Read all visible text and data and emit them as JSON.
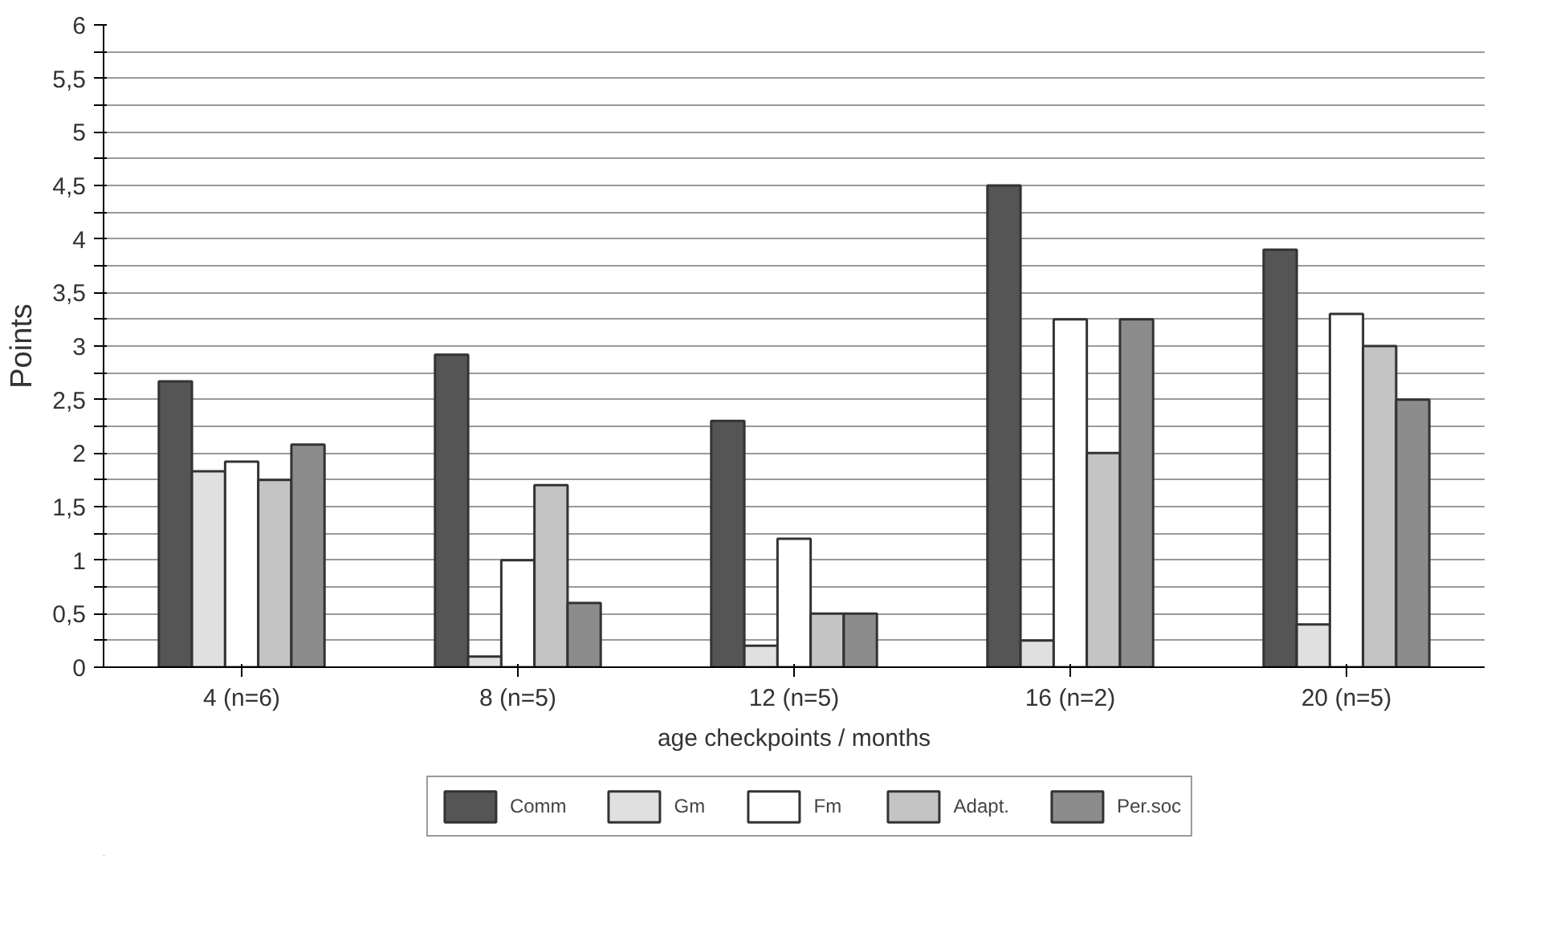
{
  "chart_data": {
    "type": "bar",
    "xlabel": "age checkpoints / months",
    "ylabel": "Points",
    "categories": [
      "4 (n=6)",
      "8 (n=5)",
      "12 (n=5)",
      "16 (n=2)",
      "20 (n=5)"
    ],
    "series": [
      {
        "name": "Comm",
        "color": "#555555",
        "values": [
          2.67,
          2.92,
          2.3,
          4.5,
          3.9
        ]
      },
      {
        "name": "Gm",
        "color": "#e0e0e0",
        "values": [
          1.83,
          0.1,
          0.2,
          0.25,
          0.4
        ]
      },
      {
        "name": "Fm",
        "color": "#ffffff",
        "values": [
          1.92,
          1.0,
          1.2,
          3.25,
          3.3
        ]
      },
      {
        "name": "Adapt.",
        "color": "#c4c4c4",
        "values": [
          1.75,
          1.7,
          0.5,
          2.0,
          3.0
        ]
      },
      {
        "name": "Per.soc",
        "color": "#8c8c8c",
        "values": [
          2.08,
          0.6,
          0.5,
          3.25,
          2.5
        ]
      }
    ],
    "ylim": [
      0,
      6
    ],
    "yticks": [
      0,
      {
        "value": 0.25,
        "label": null
      },
      {
        "value": 0.5,
        "label": "0,5"
      },
      {
        "value": 0.75,
        "label": null
      },
      1,
      {
        "value": 1.25,
        "label": null
      },
      {
        "value": 1.5,
        "label": "1,5"
      },
      {
        "value": 1.75,
        "label": null
      },
      2,
      {
        "value": 2.25,
        "label": null
      },
      {
        "value": 2.5,
        "label": "2,5"
      },
      {
        "value": 2.75,
        "label": null
      },
      3,
      {
        "value": 3.25,
        "label": null
      },
      {
        "value": 3.5,
        "label": "3,5"
      },
      {
        "value": 3.75,
        "label": null
      },
      4,
      {
        "value": 4.25,
        "label": null
      },
      {
        "value": 4.5,
        "label": "4,5"
      },
      {
        "value": 4.75,
        "label": null
      },
      5,
      {
        "value": 5.25,
        "label": null
      },
      {
        "value": 5.5,
        "label": "5,5"
      },
      {
        "value": 5.75,
        "label": null
      },
      6
    ],
    "grid": "y",
    "legend": "bottom"
  }
}
